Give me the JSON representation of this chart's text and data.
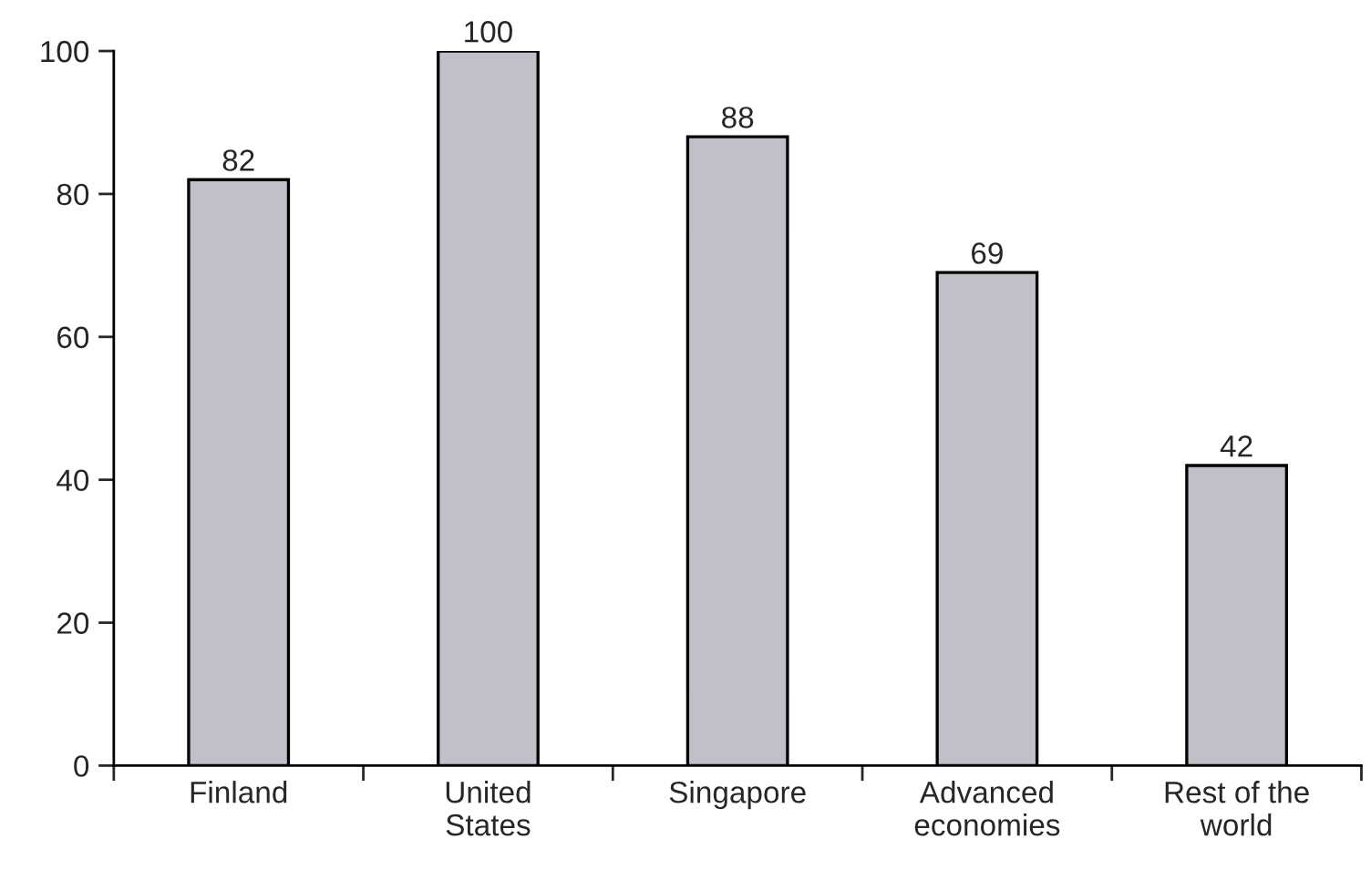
{
  "chart_data": {
    "type": "bar",
    "categories": [
      "Finland",
      "United\nStates",
      "Singapore",
      "Advanced\neconomies",
      "Rest of the\nworld"
    ],
    "values": [
      82,
      100,
      88,
      69,
      42
    ],
    "color": "#c0c1c8",
    "ylim": [
      0,
      100
    ],
    "yticks": [
      0,
      20,
      40,
      60,
      80,
      100
    ],
    "data_labels": true,
    "grid": false,
    "legend": false
  }
}
